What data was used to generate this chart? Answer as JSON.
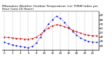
{
  "title_line1": "Milwaukee Weather Outdoor Temperature (vs) THSW Index per Hour (Last 24 Hours)",
  "hours": [
    0,
    1,
    2,
    3,
    4,
    5,
    6,
    7,
    8,
    9,
    10,
    11,
    12,
    13,
    14,
    15,
    16,
    17,
    18,
    19,
    20,
    21,
    22,
    23
  ],
  "temp": [
    40,
    39,
    38,
    37,
    36,
    35,
    35,
    36,
    40,
    46,
    54,
    61,
    66,
    68,
    67,
    64,
    60,
    56,
    52,
    49,
    46,
    44,
    43,
    43
  ],
  "thsw": [
    28,
    25,
    22,
    20,
    18,
    17,
    16,
    18,
    26,
    40,
    56,
    70,
    80,
    88,
    83,
    74,
    63,
    53,
    45,
    38,
    33,
    30,
    29,
    28
  ],
  "temp_color": "#cc0000",
  "thsw_color": "#0000cc",
  "bg_color": "#ffffff",
  "grid_color": "#888888",
  "ylim_min": 10,
  "ylim_max": 100,
  "ytick_values": [
    20,
    30,
    40,
    50,
    60,
    70,
    80,
    90
  ],
  "ytick_labels": [
    "20",
    "30",
    "40",
    "50",
    "60",
    "70",
    "80",
    "90"
  ],
  "xtick_values": [
    0,
    2,
    4,
    6,
    8,
    10,
    12,
    14,
    16,
    18,
    20,
    22
  ],
  "xtick_labels": [
    "0",
    "2",
    "4",
    "6",
    "8",
    "10",
    "12",
    "14",
    "16",
    "18",
    "20",
    "22"
  ],
  "title_fontsize": 3.2,
  "tick_fontsize": 2.8,
  "line_width": 0.6,
  "marker_size": 1.2,
  "grid_linewidth": 0.3
}
